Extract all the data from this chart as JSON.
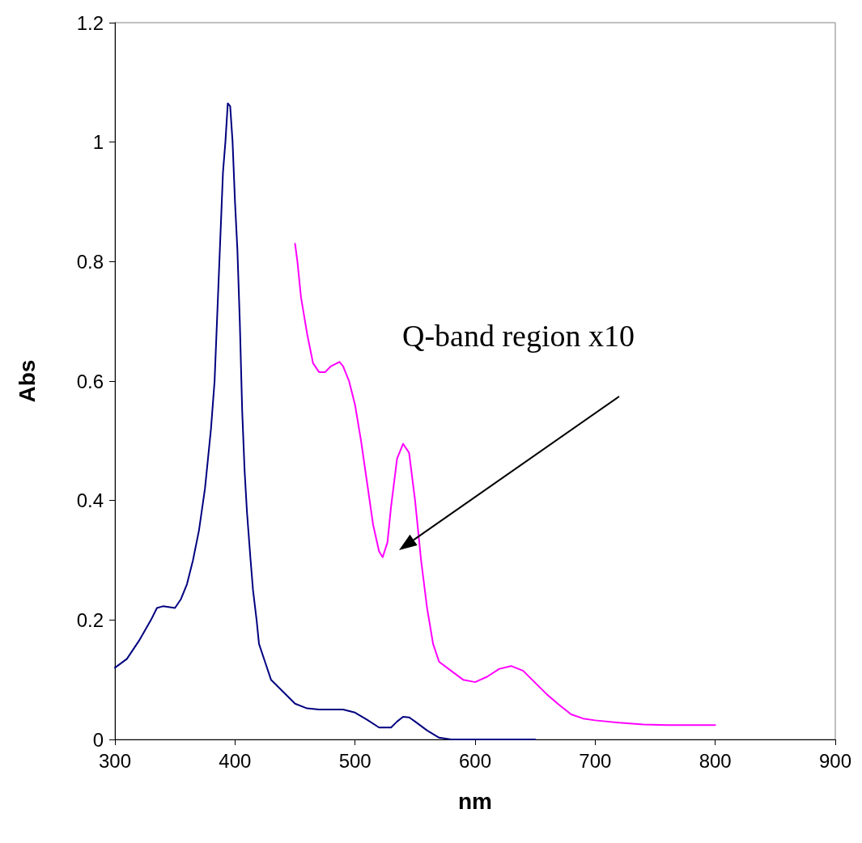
{
  "chart_data": {
    "type": "line",
    "xlabel": "nm",
    "ylabel": "Abs",
    "xlim": [
      300,
      900
    ],
    "xticks": [
      300,
      400,
      500,
      600,
      700,
      800,
      900
    ],
    "ylim": [
      0,
      1.2
    ],
    "yticks": [
      0,
      0.2,
      0.4,
      0.6,
      0.8,
      1,
      1.2
    ],
    "grid": false,
    "marker": "none",
    "line_style": "solid",
    "annotations": [
      "Q-band region x10"
    ],
    "series": [
      {
        "color": "#000080",
        "x": [
          300,
          310,
          320,
          330,
          335,
          340,
          350,
          355,
          360,
          365,
          370,
          375,
          380,
          383,
          385,
          387,
          390,
          392,
          394,
          396,
          398,
          400,
          402,
          404,
          406,
          408,
          410,
          413,
          415,
          418,
          420,
          425,
          430,
          440,
          450,
          460,
          470,
          480,
          490,
          500,
          510,
          520,
          530,
          535,
          540,
          545,
          550,
          560,
          570,
          580,
          600,
          650
        ],
        "values": [
          0.12,
          0.135,
          0.165,
          0.2,
          0.22,
          0.223,
          0.22,
          0.235,
          0.26,
          0.3,
          0.35,
          0.42,
          0.52,
          0.6,
          0.7,
          0.8,
          0.95,
          1.0,
          1.065,
          1.06,
          1.0,
          0.9,
          0.82,
          0.7,
          0.55,
          0.45,
          0.38,
          0.3,
          0.25,
          0.2,
          0.16,
          0.13,
          0.1,
          0.08,
          0.06,
          0.052,
          0.05,
          0.05,
          0.05,
          0.045,
          0.033,
          0.02,
          0.02,
          0.03,
          0.038,
          0.037,
          0.03,
          0.015,
          0.003,
          0,
          0,
          0
        ]
      },
      {
        "color": "#ff00ff",
        "x": [
          450,
          452,
          455,
          460,
          465,
          470,
          475,
          480,
          487,
          490,
          495,
          500,
          505,
          510,
          515,
          520,
          523,
          527,
          530,
          535,
          540,
          545,
          550,
          555,
          560,
          565,
          570,
          580,
          590,
          600,
          610,
          620,
          630,
          640,
          650,
          660,
          670,
          680,
          690,
          700,
          720,
          740,
          760,
          800
        ],
        "values": [
          0.83,
          0.8,
          0.74,
          0.68,
          0.63,
          0.615,
          0.615,
          0.625,
          0.632,
          0.625,
          0.6,
          0.56,
          0.5,
          0.43,
          0.36,
          0.315,
          0.305,
          0.33,
          0.39,
          0.47,
          0.495,
          0.48,
          0.4,
          0.3,
          0.22,
          0.16,
          0.13,
          0.115,
          0.1,
          0.096,
          0.105,
          0.118,
          0.123,
          0.115,
          0.095,
          0.075,
          0.058,
          0.042,
          0.035,
          0.032,
          0.028,
          0.025,
          0.024,
          0.024
        ]
      }
    ]
  }
}
